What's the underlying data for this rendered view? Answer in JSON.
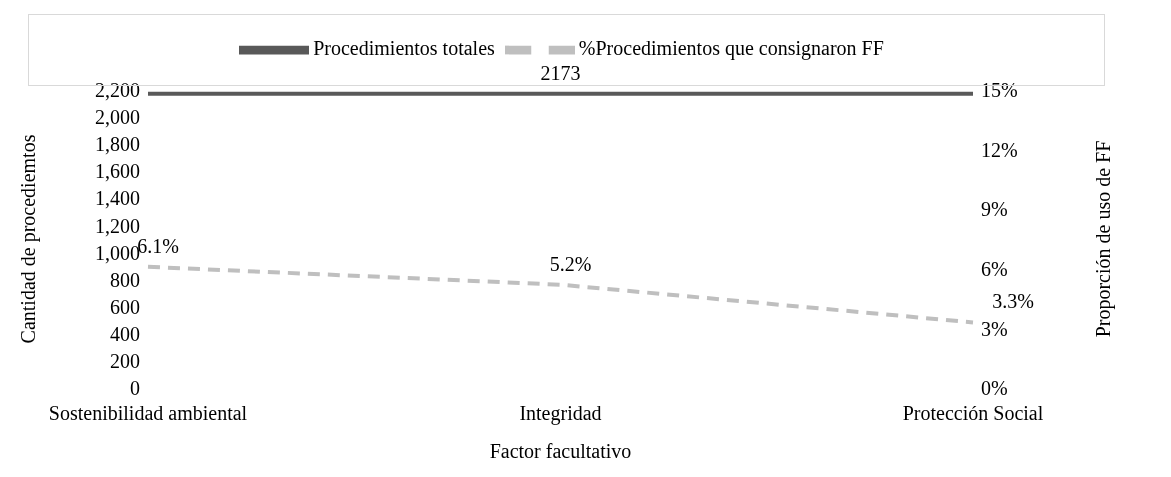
{
  "chart_data": {
    "type": "line",
    "xlabel": "Factor facultativo",
    "ylabel": "Cantidad de procediemtos",
    "y2label": "Proporción de uso de FF",
    "categories": [
      "Sostenibilidad ambiental",
      "Integridad",
      "Protección Social"
    ],
    "series": [
      {
        "name": "Procedimientos totales",
        "color": "#595959",
        "values": [
          2173,
          2173,
          2173
        ],
        "value_labels": [
          null,
          "2173",
          null
        ],
        "line_style": "solid"
      },
      {
        "name": "%Procedimientos que consignaron FF",
        "color": "#bfbfbf",
        "values": [
          6.1,
          5.2,
          3.3
        ],
        "value_labels": [
          "6.1%",
          "5.2%",
          "3.3%"
        ],
        "axis": "y2",
        "line_style": "dashed"
      }
    ],
    "ylim": [
      0,
      2200
    ],
    "yticks": [
      0,
      200,
      400,
      600,
      800,
      {
        "value": 1000,
        "label": "1,000"
      },
      {
        "value": 1200,
        "label": "1,200"
      },
      {
        "value": 1400,
        "label": "1,400"
      },
      {
        "value": 1600,
        "label": "1,600"
      },
      {
        "value": 1800,
        "label": "1,800"
      },
      {
        "value": 2000,
        "label": "2,000"
      },
      {
        "value": 2200,
        "label": "2,200"
      }
    ],
    "y2lim": [
      0,
      15
    ],
    "y2ticks": [
      {
        "value": 0,
        "label": "0%"
      },
      {
        "value": 3,
        "label": "3%"
      },
      {
        "value": 6,
        "label": "6%"
      },
      {
        "value": 9,
        "label": "9%"
      },
      {
        "value": 12,
        "label": "12%"
      },
      {
        "value": 15,
        "label": "15%"
      }
    ],
    "grid": false,
    "legend": "top",
    "marker": "none"
  }
}
